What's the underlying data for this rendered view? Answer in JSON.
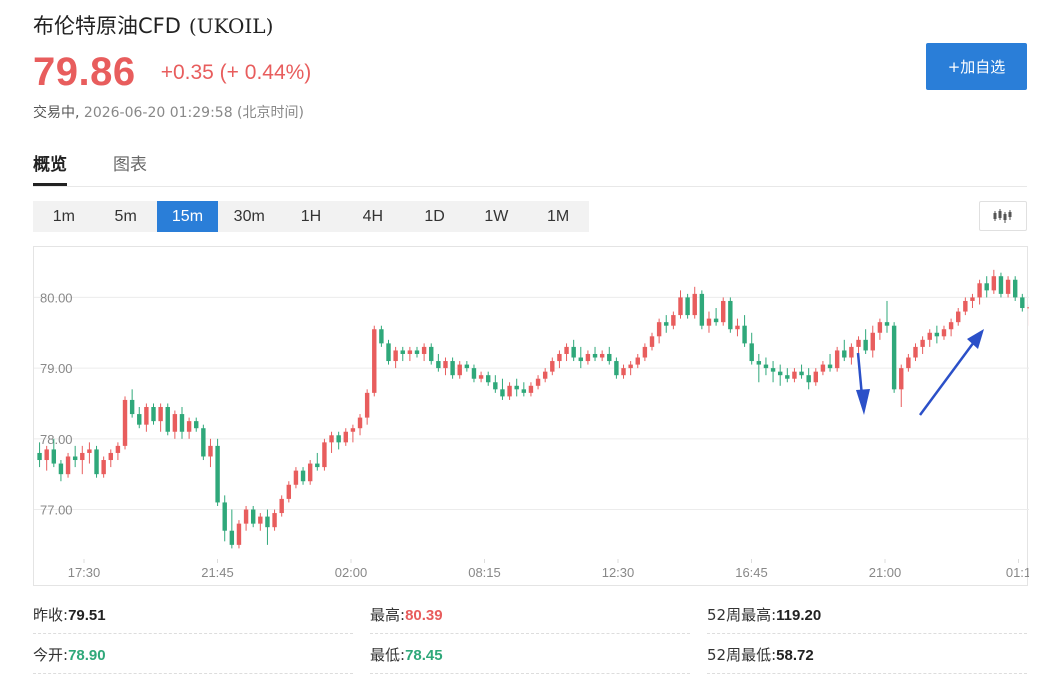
{
  "header": {
    "name": "布伦特原油CFD",
    "code": "(UKOIL)",
    "price": "79.86",
    "change": "+0.35 (+ 0.44%)",
    "status": "交易中,",
    "time": "2026-06-20 01:29:58 (北京时间)",
    "add_button": "+加自选"
  },
  "tabs": [
    {
      "label": "概览",
      "active": true
    },
    {
      "label": "图表",
      "active": false
    }
  ],
  "intervals": [
    {
      "label": "1m"
    },
    {
      "label": "5m"
    },
    {
      "label": "15m",
      "active": true
    },
    {
      "label": "30m"
    },
    {
      "label": "1H"
    },
    {
      "label": "4H"
    },
    {
      "label": "1D"
    },
    {
      "label": "1W"
    },
    {
      "label": "1M"
    }
  ],
  "chart_toolbar": {
    "icon": "candlestick-icon"
  },
  "colors": {
    "up": "#e85d5d",
    "down": "#2fa87a",
    "accent": "#2a7ed8",
    "annotation": "#2b50c8"
  },
  "chart_data": {
    "type": "candlestick",
    "title": "",
    "ylim": [
      76.3,
      80.6
    ],
    "yticks": [
      "77.00",
      "78.00",
      "79.00",
      "80.00"
    ],
    "xticks": [
      "17:30",
      "21:45",
      "02:00",
      "08:15",
      "12:30",
      "16:45",
      "21:00",
      "01:1"
    ],
    "grid": true,
    "annotations": [
      "down-arrow",
      "up-arrow"
    ],
    "series": [
      [
        77.8,
        77.95,
        77.6,
        77.7
      ],
      [
        77.7,
        77.9,
        77.55,
        77.85
      ],
      [
        77.85,
        78.0,
        77.6,
        77.65
      ],
      [
        77.65,
        77.7,
        77.4,
        77.5
      ],
      [
        77.5,
        77.8,
        77.45,
        77.75
      ],
      [
        77.75,
        77.9,
        77.6,
        77.7
      ],
      [
        77.7,
        77.9,
        77.5,
        77.8
      ],
      [
        77.8,
        77.95,
        77.65,
        77.85
      ],
      [
        77.85,
        77.9,
        77.45,
        77.5
      ],
      [
        77.5,
        77.75,
        77.45,
        77.7
      ],
      [
        77.7,
        77.85,
        77.6,
        77.8
      ],
      [
        77.8,
        77.95,
        77.7,
        77.9
      ],
      [
        77.9,
        78.6,
        77.85,
        78.55
      ],
      [
        78.55,
        78.7,
        78.3,
        78.35
      ],
      [
        78.35,
        78.45,
        78.15,
        78.2
      ],
      [
        78.2,
        78.5,
        78.1,
        78.45
      ],
      [
        78.45,
        78.5,
        78.2,
        78.25
      ],
      [
        78.25,
        78.5,
        78.1,
        78.45
      ],
      [
        78.45,
        78.5,
        78.05,
        78.1
      ],
      [
        78.1,
        78.4,
        78.0,
        78.35
      ],
      [
        78.35,
        78.45,
        78.0,
        78.1
      ],
      [
        78.1,
        78.3,
        78.0,
        78.25
      ],
      [
        78.25,
        78.3,
        78.1,
        78.15
      ],
      [
        78.15,
        78.2,
        77.7,
        77.75
      ],
      [
        77.75,
        78.0,
        77.6,
        77.9
      ],
      [
        77.9,
        78.0,
        77.05,
        77.1
      ],
      [
        77.1,
        77.2,
        76.55,
        76.7
      ],
      [
        76.7,
        77.0,
        76.45,
        76.5
      ],
      [
        76.5,
        76.85,
        76.45,
        76.8
      ],
      [
        76.8,
        77.05,
        76.7,
        77.0
      ],
      [
        77.0,
        77.05,
        76.75,
        76.8
      ],
      [
        76.8,
        76.95,
        76.7,
        76.9
      ],
      [
        76.9,
        77.0,
        76.5,
        76.75
      ],
      [
        76.75,
        77.0,
        76.7,
        76.95
      ],
      [
        76.95,
        77.2,
        76.9,
        77.15
      ],
      [
        77.15,
        77.4,
        77.1,
        77.35
      ],
      [
        77.35,
        77.6,
        77.3,
        77.55
      ],
      [
        77.55,
        77.6,
        77.35,
        77.4
      ],
      [
        77.4,
        77.7,
        77.35,
        77.65
      ],
      [
        77.65,
        77.8,
        77.55,
        77.6
      ],
      [
        77.6,
        78.0,
        77.55,
        77.95
      ],
      [
        77.95,
        78.1,
        77.8,
        78.05
      ],
      [
        78.05,
        78.1,
        77.85,
        77.95
      ],
      [
        77.95,
        78.15,
        77.9,
        78.1
      ],
      [
        78.1,
        78.2,
        77.95,
        78.15
      ],
      [
        78.15,
        78.35,
        78.05,
        78.3
      ],
      [
        78.3,
        78.7,
        78.2,
        78.65
      ],
      [
        78.65,
        79.6,
        78.6,
        79.55
      ],
      [
        79.55,
        79.6,
        79.3,
        79.35
      ],
      [
        79.35,
        79.4,
        79.05,
        79.1
      ],
      [
        79.1,
        79.3,
        79.0,
        79.25
      ],
      [
        79.25,
        79.3,
        79.1,
        79.2
      ],
      [
        79.2,
        79.3,
        79.1,
        79.25
      ],
      [
        79.25,
        79.3,
        79.15,
        79.2
      ],
      [
        79.2,
        79.35,
        79.1,
        79.3
      ],
      [
        79.3,
        79.35,
        79.05,
        79.1
      ],
      [
        79.1,
        79.2,
        78.95,
        79.0
      ],
      [
        79.0,
        79.15,
        78.9,
        79.1
      ],
      [
        79.1,
        79.15,
        78.85,
        78.9
      ],
      [
        78.9,
        79.1,
        78.85,
        79.05
      ],
      [
        79.05,
        79.1,
        78.95,
        79.0
      ],
      [
        79.0,
        79.05,
        78.8,
        78.85
      ],
      [
        78.85,
        78.95,
        78.8,
        78.9
      ],
      [
        78.9,
        78.95,
        78.75,
        78.8
      ],
      [
        78.8,
        78.9,
        78.65,
        78.7
      ],
      [
        78.7,
        78.85,
        78.55,
        78.6
      ],
      [
        78.6,
        78.8,
        78.55,
        78.75
      ],
      [
        78.75,
        78.85,
        78.6,
        78.7
      ],
      [
        78.7,
        78.8,
        78.6,
        78.65
      ],
      [
        78.65,
        78.8,
        78.6,
        78.75
      ],
      [
        78.75,
        78.9,
        78.7,
        78.85
      ],
      [
        78.85,
        79.0,
        78.8,
        78.95
      ],
      [
        78.95,
        79.15,
        78.9,
        79.1
      ],
      [
        79.1,
        79.25,
        79.0,
        79.2
      ],
      [
        79.2,
        79.35,
        79.1,
        79.3
      ],
      [
        79.3,
        79.4,
        79.1,
        79.15
      ],
      [
        79.15,
        79.3,
        79.0,
        79.1
      ],
      [
        79.1,
        79.25,
        79.05,
        79.2
      ],
      [
        79.2,
        79.3,
        79.1,
        79.15
      ],
      [
        79.15,
        79.25,
        79.1,
        79.2
      ],
      [
        79.2,
        79.3,
        79.05,
        79.1
      ],
      [
        79.1,
        79.15,
        78.85,
        78.9
      ],
      [
        78.9,
        79.05,
        78.85,
        79.0
      ],
      [
        79.0,
        79.1,
        78.9,
        79.05
      ],
      [
        79.05,
        79.2,
        79.0,
        79.15
      ],
      [
        79.15,
        79.35,
        79.1,
        79.3
      ],
      [
        79.3,
        79.5,
        79.25,
        79.45
      ],
      [
        79.45,
        79.7,
        79.35,
        79.65
      ],
      [
        79.65,
        79.75,
        79.5,
        79.6
      ],
      [
        79.6,
        79.8,
        79.55,
        79.75
      ],
      [
        79.75,
        80.1,
        79.7,
        80.0
      ],
      [
        80.0,
        80.05,
        79.7,
        79.75
      ],
      [
        79.75,
        80.15,
        79.7,
        80.05
      ],
      [
        80.05,
        80.1,
        79.55,
        79.6
      ],
      [
        79.6,
        79.8,
        79.5,
        79.7
      ],
      [
        79.7,
        79.85,
        79.6,
        79.65
      ],
      [
        79.65,
        80.0,
        79.6,
        79.95
      ],
      [
        79.95,
        80.0,
        79.5,
        79.55
      ],
      [
        79.55,
        79.7,
        79.45,
        79.6
      ],
      [
        79.6,
        79.75,
        79.3,
        79.35
      ],
      [
        79.35,
        79.5,
        79.05,
        79.1
      ],
      [
        79.1,
        79.2,
        78.8,
        79.05
      ],
      [
        79.05,
        79.15,
        78.9,
        79.0
      ],
      [
        79.0,
        79.1,
        78.8,
        78.95
      ],
      [
        78.95,
        79.05,
        78.75,
        78.9
      ],
      [
        78.9,
        79.0,
        78.8,
        78.85
      ],
      [
        78.85,
        79.0,
        78.8,
        78.95
      ],
      [
        78.95,
        79.05,
        78.85,
        78.9
      ],
      [
        78.9,
        79.0,
        78.7,
        78.8
      ],
      [
        78.8,
        79.0,
        78.75,
        78.95
      ],
      [
        78.95,
        79.1,
        78.9,
        79.05
      ],
      [
        79.05,
        79.2,
        78.95,
        79.0
      ],
      [
        79.0,
        79.3,
        78.95,
        79.25
      ],
      [
        79.25,
        79.4,
        79.1,
        79.15
      ],
      [
        79.15,
        79.35,
        79.05,
        79.3
      ],
      [
        79.3,
        79.45,
        79.2,
        79.4
      ],
      [
        79.4,
        79.55,
        79.2,
        79.25
      ],
      [
        79.25,
        79.6,
        79.15,
        79.5
      ],
      [
        79.5,
        79.7,
        79.4,
        79.65
      ],
      [
        79.65,
        79.95,
        79.5,
        79.6
      ],
      [
        79.6,
        79.65,
        78.65,
        78.7
      ],
      [
        78.7,
        79.05,
        78.45,
        79.0
      ],
      [
        79.0,
        79.2,
        78.95,
        79.15
      ],
      [
        79.15,
        79.35,
        79.1,
        79.3
      ],
      [
        79.3,
        79.45,
        79.2,
        79.4
      ],
      [
        79.4,
        79.55,
        79.3,
        79.5
      ],
      [
        79.5,
        79.6,
        79.35,
        79.45
      ],
      [
        79.45,
        79.6,
        79.4,
        79.55
      ],
      [
        79.55,
        79.7,
        79.45,
        79.65
      ],
      [
        79.65,
        79.85,
        79.6,
        79.8
      ],
      [
        79.8,
        80.0,
        79.75,
        79.95
      ],
      [
        79.95,
        80.05,
        79.85,
        80.0
      ],
      [
        80.0,
        80.25,
        79.9,
        80.2
      ],
      [
        80.2,
        80.3,
        80.0,
        80.1
      ],
      [
        80.1,
        80.39,
        80.05,
        80.3
      ],
      [
        80.3,
        80.35,
        80.0,
        80.05
      ],
      [
        80.05,
        80.3,
        80.0,
        80.25
      ],
      [
        80.25,
        80.3,
        79.95,
        80.0
      ],
      [
        80.0,
        80.05,
        79.8,
        79.85
      ],
      [
        79.85,
        79.9,
        79.6,
        79.86
      ]
    ]
  },
  "stats": {
    "prev_close": {
      "label": "昨收:",
      "value": "79.51"
    },
    "open": {
      "label": "今开:",
      "value": "78.90"
    },
    "high": {
      "label": "最高:",
      "value": "80.39"
    },
    "low": {
      "label": "最低:",
      "value": "78.45"
    },
    "w52_high": {
      "label": "52周最高:",
      "value": "119.20"
    },
    "w52_low": {
      "label": "52周最低:",
      "value": "58.72"
    }
  }
}
